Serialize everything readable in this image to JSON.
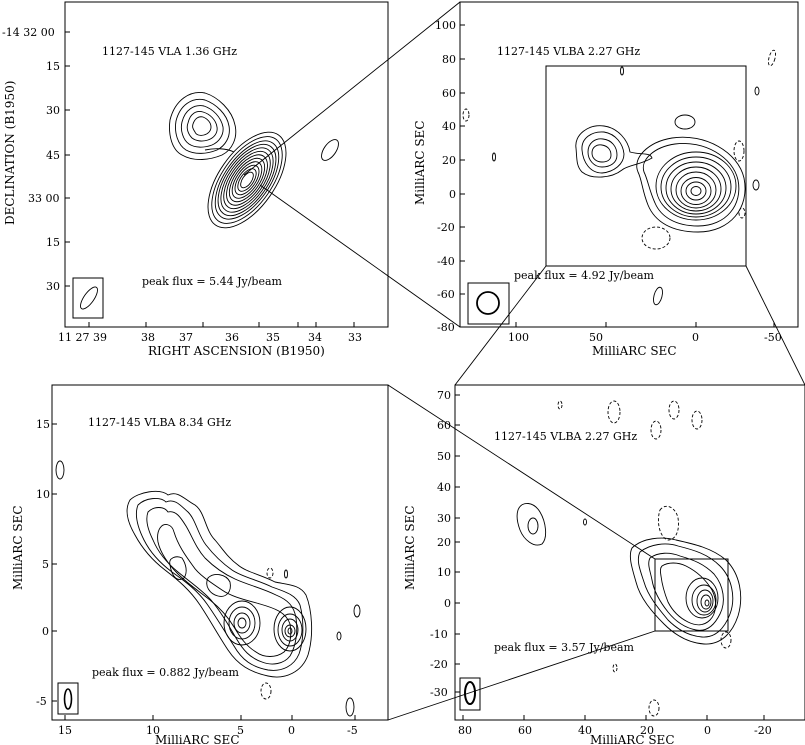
{
  "chart_data": [
    {
      "type": "contour",
      "id": "vla",
      "title": "1127-145 VLA 1.36 GHz",
      "peak_flux": "peak flux =  5.44 Jy/beam",
      "xlabel": "RIGHT ASCENSION (B1950)",
      "ylabel": "DECLINATION (B1950)",
      "x_ticks": [
        "11 27 39",
        "38",
        "37",
        "36",
        "35",
        "34",
        "33"
      ],
      "y_ticks": [
        "-14 32 00",
        "15",
        "30",
        "45",
        "33 00",
        "15",
        "30"
      ]
    },
    {
      "type": "contour",
      "id": "vlba227a",
      "title": "1127-145 VLBA 2.27 GHz",
      "peak_flux": "peak flux =  4.92 Jy/beam",
      "xlabel": "MilliARC SEC",
      "ylabel": "MilliARC SEC",
      "x_ticks": [
        "100",
        "50",
        "0",
        "-50"
      ],
      "y_ticks": [
        "100",
        "80",
        "60",
        "40",
        "20",
        "0",
        "-20",
        "-40",
        "-60",
        "-80"
      ]
    },
    {
      "type": "contour",
      "id": "vlba834",
      "title": "1127-145 VLBA 8.34 GHz",
      "peak_flux": "peak flux =  0.882 Jy/beam",
      "xlabel": "MilliARC SEC",
      "ylabel": "MilliARC SEC",
      "x_ticks": [
        "15",
        "10",
        "5",
        "0",
        "-5"
      ],
      "y_ticks": [
        "15",
        "10",
        "5",
        "0",
        "-5"
      ]
    },
    {
      "type": "contour",
      "id": "vlba227b",
      "title": "1127-145 VLBA 2.27 GHz",
      "peak_flux": "peak flux =  3.57 Jy/beam",
      "xlabel": "MilliARC SEC",
      "ylabel": "MilliARC SEC",
      "x_ticks": [
        "80",
        "60",
        "40",
        "20",
        "0",
        "-20"
      ],
      "y_ticks": [
        "70",
        "60",
        "50",
        "40",
        "30",
        "20",
        "10",
        "0",
        "-10",
        "-20",
        "-30"
      ]
    }
  ]
}
